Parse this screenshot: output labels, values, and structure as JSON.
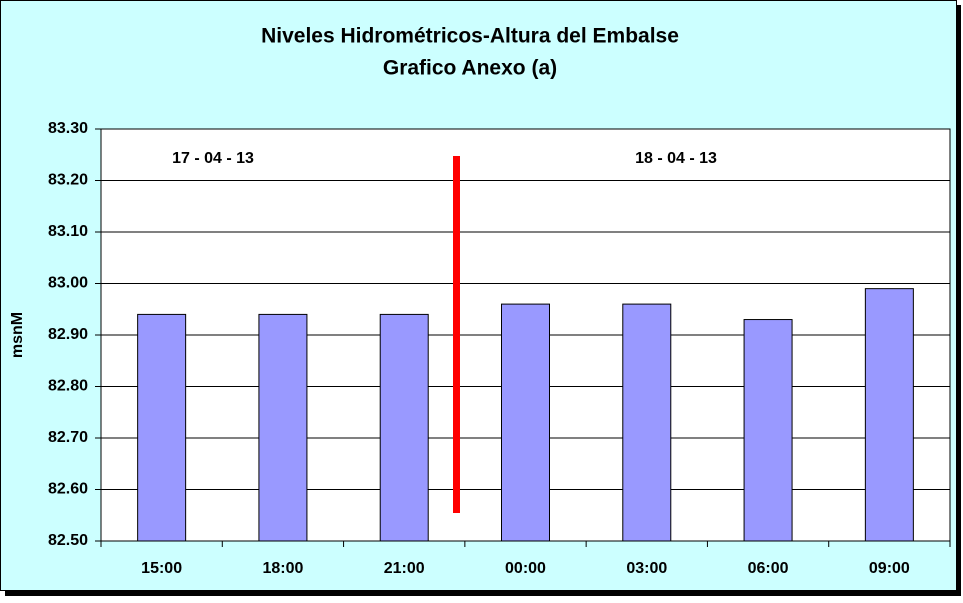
{
  "chart_data": {
    "type": "bar",
    "title": "Niveles Hidrométricos-Altura del Embalse",
    "subtitle": "Grafico Anexo (a)",
    "y_label": "msnM",
    "categories": [
      "15:00",
      "18:00",
      "21:00",
      "00:00",
      "03:00",
      "06:00",
      "09:00"
    ],
    "values": [
      82.94,
      82.94,
      82.94,
      82.96,
      82.96,
      82.93,
      82.99
    ],
    "color": "#9999ff",
    "ylim": [
      82.5,
      83.3
    ],
    "yticks": [
      {
        "value": 82.5,
        "label": "82.50"
      },
      {
        "value": 82.6,
        "label": "82.60"
      },
      {
        "value": 82.7,
        "label": "82.70"
      },
      {
        "value": 82.8,
        "label": "82.80"
      },
      {
        "value": 82.9,
        "label": "82.90"
      },
      {
        "value": 83.0,
        "label": "83.00"
      },
      {
        "value": 83.1,
        "label": "83.10"
      },
      {
        "value": 83.2,
        "label": "83.20"
      },
      {
        "value": 83.3,
        "label": "83.30"
      }
    ],
    "grid": true,
    "annotations": [
      "17 - 04 - 13",
      "18 - 04 - 13"
    ]
  }
}
